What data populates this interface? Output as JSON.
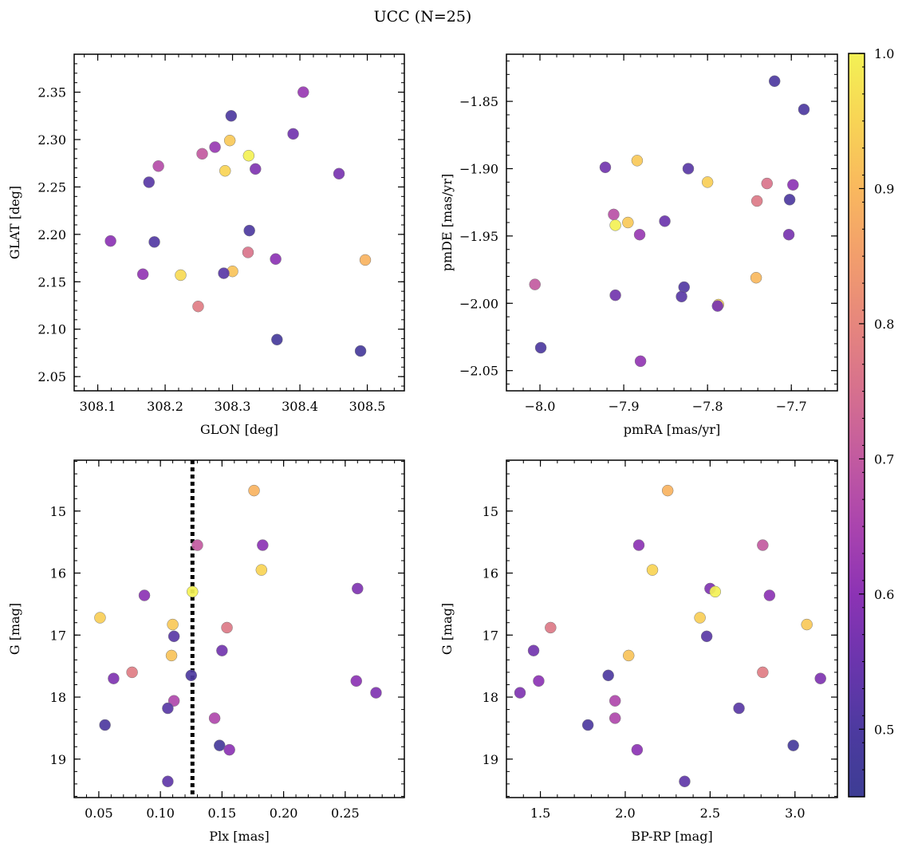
{
  "figure_title": "UCC (N=25)",
  "chart_data": [
    {
      "type": "scatter",
      "id": "spatial",
      "xlabel": "GLON [deg]",
      "ylabel": "GLAT [deg]",
      "xlim": [
        308.065,
        308.555
      ],
      "ylim": [
        2.035,
        2.39
      ],
      "y_inverted": false,
      "xticks": [
        {
          "v": 308.1,
          "label": "308.1"
        },
        {
          "v": 308.2,
          "label": "308.2"
        },
        {
          "v": 308.3,
          "label": "308.3"
        },
        {
          "v": 308.4,
          "label": "308.4"
        },
        {
          "v": 308.5,
          "label": "308.5"
        }
      ],
      "yticks": [
        {
          "v": 2.05,
          "label": "2.05"
        },
        {
          "v": 2.1,
          "label": "2.10"
        },
        {
          "v": 2.15,
          "label": "2.15"
        },
        {
          "v": 2.2,
          "label": "2.20"
        },
        {
          "v": 2.25,
          "label": "2.25"
        },
        {
          "v": 2.3,
          "label": "2.30"
        },
        {
          "v": 2.35,
          "label": "2.35"
        }
      ],
      "points": [
        {
          "x": 308.405,
          "y": 2.35,
          "c": 0.62
        },
        {
          "x": 308.298,
          "y": 2.325,
          "c": 0.5
        },
        {
          "x": 308.39,
          "y": 2.306,
          "c": 0.56
        },
        {
          "x": 308.296,
          "y": 2.299,
          "c": 0.93
        },
        {
          "x": 308.274,
          "y": 2.292,
          "c": 0.62
        },
        {
          "x": 308.255,
          "y": 2.285,
          "c": 0.7
        },
        {
          "x": 308.324,
          "y": 2.283,
          "c": 1.0
        },
        {
          "x": 308.19,
          "y": 2.272,
          "c": 0.67
        },
        {
          "x": 308.334,
          "y": 2.269,
          "c": 0.58
        },
        {
          "x": 308.289,
          "y": 2.267,
          "c": 0.95
        },
        {
          "x": 308.458,
          "y": 2.264,
          "c": 0.57
        },
        {
          "x": 308.176,
          "y": 2.255,
          "c": 0.52
        },
        {
          "x": 308.325,
          "y": 2.204,
          "c": 0.5
        },
        {
          "x": 308.119,
          "y": 2.193,
          "c": 0.6
        },
        {
          "x": 308.184,
          "y": 2.192,
          "c": 0.51
        },
        {
          "x": 308.323,
          "y": 2.181,
          "c": 0.76
        },
        {
          "x": 308.364,
          "y": 2.174,
          "c": 0.6
        },
        {
          "x": 308.497,
          "y": 2.173,
          "c": 0.89
        },
        {
          "x": 308.3,
          "y": 2.161,
          "c": 0.92
        },
        {
          "x": 308.287,
          "y": 2.159,
          "c": 0.52
        },
        {
          "x": 308.167,
          "y": 2.158,
          "c": 0.61
        },
        {
          "x": 308.223,
          "y": 2.157,
          "c": 0.96
        },
        {
          "x": 308.249,
          "y": 2.124,
          "c": 0.78
        },
        {
          "x": 308.366,
          "y": 2.089,
          "c": 0.48
        },
        {
          "x": 308.49,
          "y": 2.077,
          "c": 0.48
        }
      ]
    },
    {
      "type": "scatter",
      "id": "proper-motion",
      "xlabel": "pmRA [mas/yr]",
      "ylabel": "pmDE [mas/yr]",
      "xlim": [
        -8.04,
        -7.645
      ],
      "ylim": [
        -2.065,
        -1.815
      ],
      "y_inverted": false,
      "xticks": [
        {
          "v": -8.0,
          "label": "−8.0"
        },
        {
          "v": -7.9,
          "label": "−7.9"
        },
        {
          "v": -7.8,
          "label": "−7.8"
        },
        {
          "v": -7.7,
          "label": "−7.7"
        }
      ],
      "yticks": [
        {
          "v": -2.05,
          "label": "−2.05"
        },
        {
          "v": -2.0,
          "label": "−2.00"
        },
        {
          "v": -1.95,
          "label": "−1.95"
        },
        {
          "v": -1.9,
          "label": "−1.90"
        },
        {
          "v": -1.85,
          "label": "−1.85"
        }
      ],
      "points": [
        {
          "x": -7.72,
          "y": -1.835,
          "c": 0.5
        },
        {
          "x": -7.685,
          "y": -1.856,
          "c": 0.5
        },
        {
          "x": -7.884,
          "y": -1.894,
          "c": 0.93
        },
        {
          "x": -7.922,
          "y": -1.899,
          "c": 0.56
        },
        {
          "x": -7.823,
          "y": -1.9,
          "c": 0.52
        },
        {
          "x": -7.8,
          "y": -1.91,
          "c": 0.94
        },
        {
          "x": -7.729,
          "y": -1.911,
          "c": 0.76
        },
        {
          "x": -7.698,
          "y": -1.912,
          "c": 0.6
        },
        {
          "x": -7.741,
          "y": -1.924,
          "c": 0.77
        },
        {
          "x": -7.702,
          "y": -1.923,
          "c": 0.5
        },
        {
          "x": -7.912,
          "y": -1.934,
          "c": 0.68
        },
        {
          "x": -7.895,
          "y": -1.94,
          "c": 0.93
        },
        {
          "x": -7.851,
          "y": -1.939,
          "c": 0.55
        },
        {
          "x": -7.91,
          "y": -1.942,
          "c": 1.0
        },
        {
          "x": -7.881,
          "y": -1.949,
          "c": 0.62
        },
        {
          "x": -7.703,
          "y": -1.949,
          "c": 0.57
        },
        {
          "x": -7.742,
          "y": -1.981,
          "c": 0.9
        },
        {
          "x": -8.006,
          "y": -1.986,
          "c": 0.7
        },
        {
          "x": -7.828,
          "y": -1.988,
          "c": 0.51
        },
        {
          "x": -7.91,
          "y": -1.994,
          "c": 0.56
        },
        {
          "x": -7.831,
          "y": -1.995,
          "c": 0.52
        },
        {
          "x": -7.787,
          "y": -2.001,
          "c": 0.94
        },
        {
          "x": -7.788,
          "y": -2.002,
          "c": 0.57
        },
        {
          "x": -7.999,
          "y": -2.033,
          "c": 0.5
        },
        {
          "x": -7.88,
          "y": -2.043,
          "c": 0.61
        }
      ]
    },
    {
      "type": "scatter",
      "id": "plx-g",
      "xlabel": "Plx [mas]",
      "ylabel": "G [mag]",
      "xlim": [
        0.03,
        0.298
      ],
      "ylim": [
        19.62,
        14.18
      ],
      "y_inverted": true,
      "vline": {
        "x": 0.126,
        "style": "dotted",
        "color": "#000000"
      },
      "xticks": [
        {
          "v": 0.05,
          "label": "0.05"
        },
        {
          "v": 0.1,
          "label": "0.10"
        },
        {
          "v": 0.15,
          "label": "0.15"
        },
        {
          "v": 0.2,
          "label": "0.20"
        },
        {
          "v": 0.25,
          "label": "0.25"
        }
      ],
      "yticks": [
        {
          "v": 15,
          "label": "15"
        },
        {
          "v": 16,
          "label": "16"
        },
        {
          "v": 17,
          "label": "17"
        },
        {
          "v": 18,
          "label": "18"
        },
        {
          "v": 19,
          "label": "19"
        }
      ],
      "points": [
        {
          "x": 0.176,
          "y": 14.67,
          "c": 0.89
        },
        {
          "x": 0.13,
          "y": 15.55,
          "c": 0.7
        },
        {
          "x": 0.183,
          "y": 15.55,
          "c": 0.6
        },
        {
          "x": 0.182,
          "y": 15.95,
          "c": 0.95
        },
        {
          "x": 0.26,
          "y": 16.25,
          "c": 0.58
        },
        {
          "x": 0.126,
          "y": 16.3,
          "c": 1.0
        },
        {
          "x": 0.087,
          "y": 16.36,
          "c": 0.6
        },
        {
          "x": 0.051,
          "y": 16.72,
          "c": 0.94
        },
        {
          "x": 0.11,
          "y": 16.83,
          "c": 0.93
        },
        {
          "x": 0.154,
          "y": 16.88,
          "c": 0.77
        },
        {
          "x": 0.111,
          "y": 17.02,
          "c": 0.52
        },
        {
          "x": 0.15,
          "y": 17.25,
          "c": 0.56
        },
        {
          "x": 0.109,
          "y": 17.33,
          "c": 0.92
        },
        {
          "x": 0.077,
          "y": 17.6,
          "c": 0.78
        },
        {
          "x": 0.125,
          "y": 17.65,
          "c": 0.5
        },
        {
          "x": 0.062,
          "y": 17.7,
          "c": 0.58
        },
        {
          "x": 0.259,
          "y": 17.74,
          "c": 0.6
        },
        {
          "x": 0.275,
          "y": 17.93,
          "c": 0.58
        },
        {
          "x": 0.111,
          "y": 18.06,
          "c": 0.66
        },
        {
          "x": 0.106,
          "y": 18.18,
          "c": 0.52
        },
        {
          "x": 0.144,
          "y": 18.34,
          "c": 0.66
        },
        {
          "x": 0.055,
          "y": 18.45,
          "c": 0.5
        },
        {
          "x": 0.148,
          "y": 18.78,
          "c": 0.48
        },
        {
          "x": 0.156,
          "y": 18.85,
          "c": 0.6
        },
        {
          "x": 0.106,
          "y": 19.36,
          "c": 0.53
        }
      ]
    },
    {
      "type": "scatter",
      "id": "cmd",
      "xlabel": "BP-RP [mag]",
      "ylabel": "G [mag]",
      "xlim": [
        1.3,
        3.25
      ],
      "ylim": [
        19.62,
        14.18
      ],
      "y_inverted": true,
      "xticks": [
        {
          "v": 1.5,
          "label": "1.5"
        },
        {
          "v": 2.0,
          "label": "2.0"
        },
        {
          "v": 2.5,
          "label": "2.5"
        },
        {
          "v": 3.0,
          "label": "3.0"
        }
      ],
      "yticks": [
        {
          "v": 15,
          "label": "15"
        },
        {
          "v": 16,
          "label": "16"
        },
        {
          "v": 17,
          "label": "17"
        },
        {
          "v": 18,
          "label": "18"
        },
        {
          "v": 19,
          "label": "19"
        }
      ],
      "points": [
        {
          "x": 2.25,
          "y": 14.67,
          "c": 0.89
        },
        {
          "x": 2.08,
          "y": 15.55,
          "c": 0.6
        },
        {
          "x": 2.81,
          "y": 15.55,
          "c": 0.7
        },
        {
          "x": 2.16,
          "y": 15.95,
          "c": 0.95
        },
        {
          "x": 2.5,
          "y": 16.25,
          "c": 0.58
        },
        {
          "x": 2.53,
          "y": 16.3,
          "c": 1.0
        },
        {
          "x": 2.85,
          "y": 16.36,
          "c": 0.6
        },
        {
          "x": 2.44,
          "y": 16.72,
          "c": 0.94
        },
        {
          "x": 3.07,
          "y": 16.83,
          "c": 0.93
        },
        {
          "x": 1.56,
          "y": 16.88,
          "c": 0.77
        },
        {
          "x": 2.48,
          "y": 17.02,
          "c": 0.52
        },
        {
          "x": 1.46,
          "y": 17.25,
          "c": 0.56
        },
        {
          "x": 2.02,
          "y": 17.33,
          "c": 0.92
        },
        {
          "x": 2.81,
          "y": 17.6,
          "c": 0.78
        },
        {
          "x": 1.9,
          "y": 17.65,
          "c": 0.5
        },
        {
          "x": 3.15,
          "y": 17.7,
          "c": 0.58
        },
        {
          "x": 1.49,
          "y": 17.74,
          "c": 0.6
        },
        {
          "x": 1.38,
          "y": 17.93,
          "c": 0.58
        },
        {
          "x": 1.94,
          "y": 18.06,
          "c": 0.66
        },
        {
          "x": 2.67,
          "y": 18.18,
          "c": 0.52
        },
        {
          "x": 1.94,
          "y": 18.34,
          "c": 0.66
        },
        {
          "x": 1.78,
          "y": 18.45,
          "c": 0.5
        },
        {
          "x": 2.99,
          "y": 18.78,
          "c": 0.48
        },
        {
          "x": 2.07,
          "y": 18.85,
          "c": 0.6
        },
        {
          "x": 2.35,
          "y": 19.36,
          "c": 0.53
        }
      ]
    }
  ],
  "colorbar": {
    "colormap": "plasma",
    "range": [
      0.45,
      1.0
    ],
    "ticks": [
      {
        "v": 0.5,
        "label": "0.5"
      },
      {
        "v": 0.6,
        "label": "0.6"
      },
      {
        "v": 0.7,
        "label": "0.7"
      },
      {
        "v": 0.8,
        "label": "0.8"
      },
      {
        "v": 0.9,
        "label": "0.9"
      },
      {
        "v": 1.0,
        "label": "1.0"
      }
    ],
    "colors": {
      "0.45": "#3d3d94",
      "0.50": "#4d3aa0",
      "0.55": "#6b35ad",
      "0.60": "#8c33b4",
      "0.65": "#aa44ae",
      "0.70": "#c25aa0",
      "0.75": "#d6708e",
      "0.80": "#e6867d",
      "0.85": "#f29e6c",
      "0.90": "#f9b85e",
      "0.95": "#f8d455",
      "1.00": "#f3f155"
    }
  }
}
